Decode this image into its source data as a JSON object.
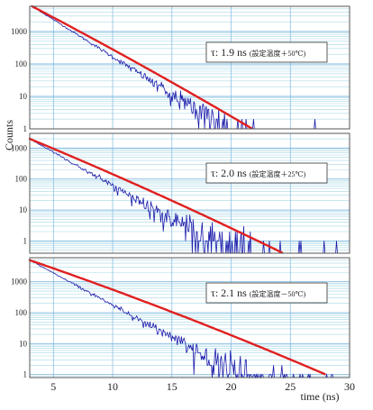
{
  "chart_data": {
    "type": "line",
    "ylabel": "Counts",
    "xlabel": "time (ns)",
    "xlim": [
      3,
      30
    ],
    "x_ticks": [
      "5",
      "10",
      "15",
      "20",
      "25",
      "30"
    ],
    "y_ticks": [
      "1",
      "10",
      "100",
      "1000"
    ],
    "y_scale": "log",
    "grid": true,
    "colors": {
      "data": "#1a1aaa",
      "fit": "#e02020",
      "grid": "#a8d8e8",
      "major_grid": "#7fb8e0",
      "frame": "#555555"
    },
    "panels": [
      {
        "annotation": "τ: 1.9 ns (設定温度＋50℃)",
        "annotation_main": "τ: 1.9 ns",
        "annotation_sub": "(設定温度＋50℃)",
        "tau_ns": 1.9,
        "ylim": [
          1,
          6000
        ],
        "fit": {
          "x": [
            3.2,
            21.8
          ],
          "y": [
            6000,
            1
          ]
        },
        "data_end_x": 30
      },
      {
        "annotation": "τ: 2.0 ns (設定温度＋25℃)",
        "annotation_main": "τ: 2.0 ns",
        "annotation_sub": "(設定温度＋25℃)",
        "tau_ns": 2.0,
        "ylim": [
          0.4,
          3000
        ],
        "fit": {
          "x": [
            3.0,
            24.4
          ],
          "y": [
            2000,
            0.4
          ]
        },
        "data_end_x": 30
      },
      {
        "annotation": "τ: 2.1 ns (設定温度－50℃)",
        "annotation_main": "τ: 2.1 ns",
        "annotation_sub": "(設定温度－50℃)",
        "tau_ns": 2.1,
        "ylim": [
          0.8,
          6000
        ],
        "fit": {
          "x": [
            3.0,
            28.0
          ],
          "y": [
            5000,
            1
          ]
        },
        "data_end_x": 30
      }
    ]
  }
}
